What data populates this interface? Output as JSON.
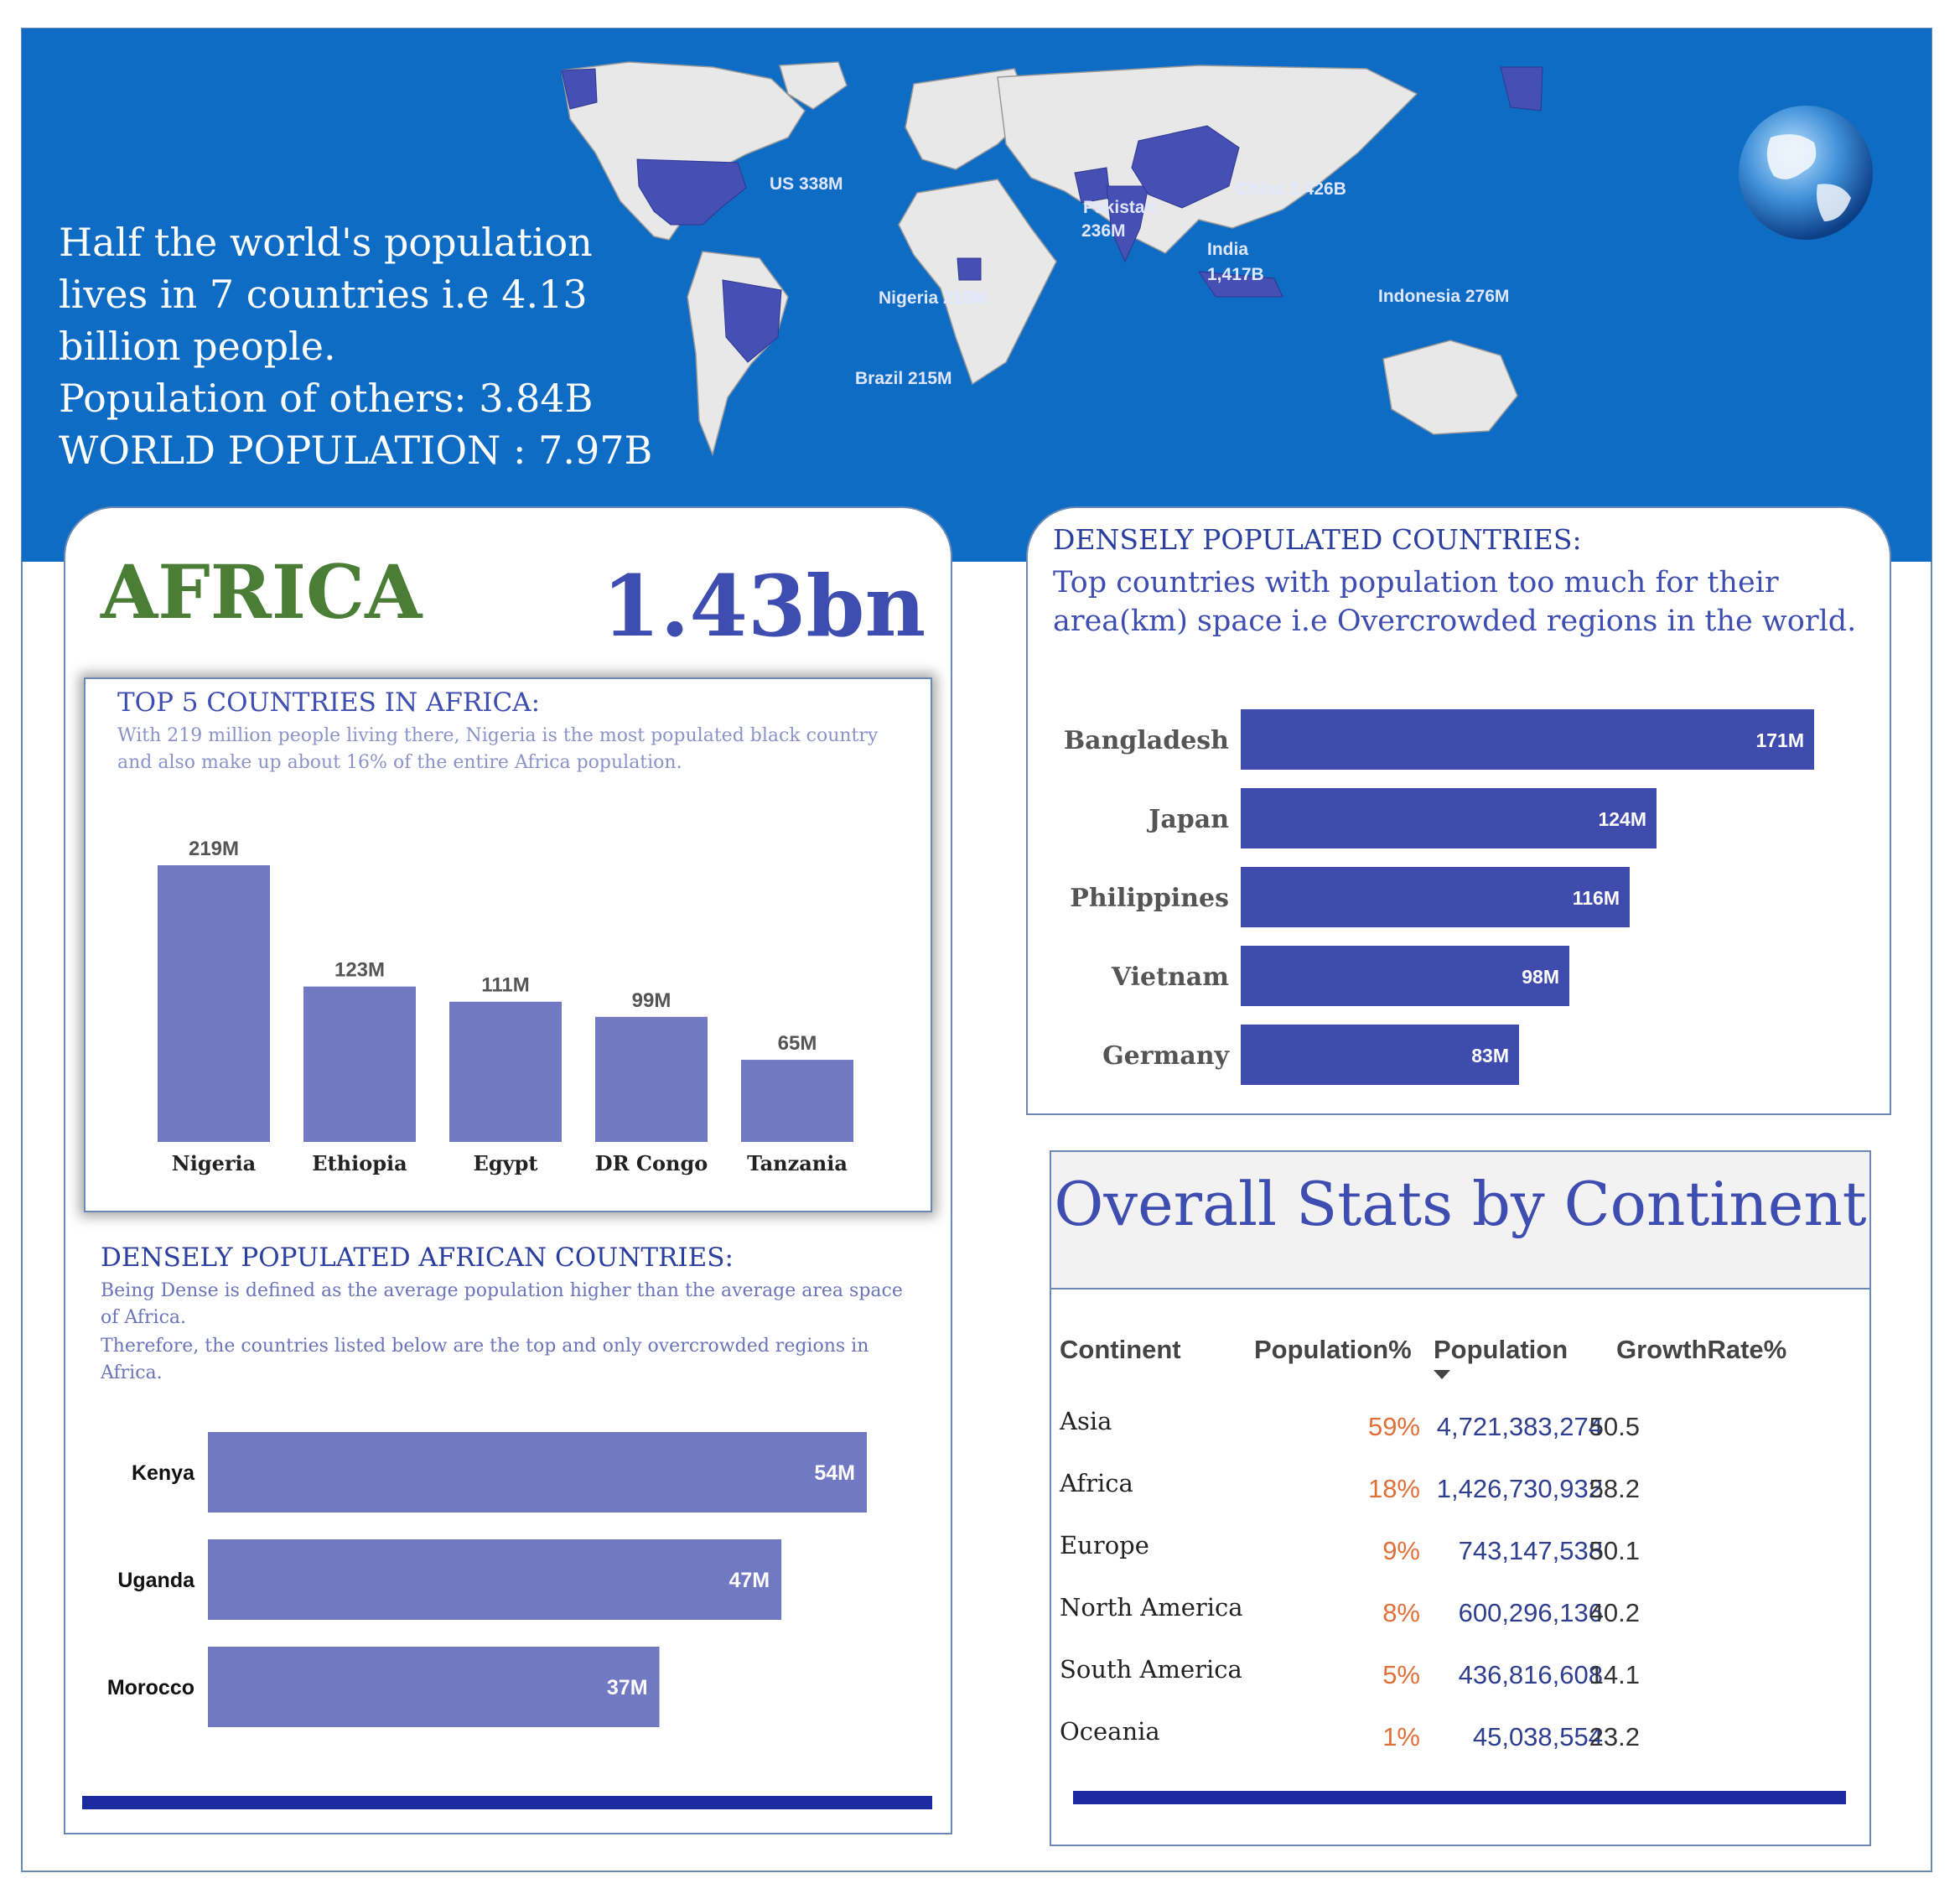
{
  "header": {
    "lines": [
      "Half the world's population",
      "lives in 7 countries i.e 4.13",
      "billion people.",
      "Population of others: 3.84B",
      "WORLD POPULATION : 7.97B"
    ],
    "map_labels": {
      "us": "US  338M",
      "china": "China 1.426B",
      "pakistan_1": "Pakistan",
      "pakistan_2": "236M",
      "india_1": "India",
      "india_2": "1,417B",
      "nigeria": "Nigeria 219M",
      "indonesia": "Indonesia 276M",
      "brazil": "Brazil 215M"
    }
  },
  "africa": {
    "title": "AFRICA",
    "population": "1.43bn",
    "top5": {
      "title": "TOP 5 COUNTRIES IN AFRICA:",
      "desc_1": "With 219 million people living there, Nigeria is the most populated black country",
      "desc_2": "and also make up  about 16% of the entire Africa population."
    },
    "dense": {
      "title": "DENSELY POPULATED AFRICAN COUNTRIES:",
      "desc_1": "Being Dense is defined as the average population higher than the average area space",
      "desc_2": "of Africa.",
      "desc_3": "Therefore, the countries listed below are the top and  only overcrowded regions in",
      "desc_4": "Africa."
    }
  },
  "dense_world": {
    "title": "DENSELY POPULATED COUNTRIES:",
    "desc_1": "Top countries with population too much for their",
    "desc_2": "area(km) space i.e Overcrowded regions in the world."
  },
  "stats": {
    "title": "Overall Stats by Continent",
    "headers": [
      "Continent",
      "Population%",
      "Population",
      "GrowthRate%"
    ],
    "rows": [
      {
        "continent": "Asia",
        "pct": "59%",
        "population": "4,721,383,274",
        "growth": "50.5"
      },
      {
        "continent": "Africa",
        "pct": "18%",
        "population": "1,426,730,932",
        "growth": "58.2"
      },
      {
        "continent": "Europe",
        "pct": "9%",
        "population": "743,147,538",
        "growth": "50.1"
      },
      {
        "continent": "North America",
        "pct": "8%",
        "population": "600,296,136",
        "growth": "40.2"
      },
      {
        "continent": "South America",
        "pct": "5%",
        "population": "436,816,608",
        "growth": "14.1"
      },
      {
        "continent": "Oceania",
        "pct": "1%",
        "population": "45,038,554",
        "growth": "23.2"
      }
    ]
  },
  "colors": {
    "banner": "#0f6cc4",
    "africa_bar": "#7079c2",
    "world_bar": "#3f4cad",
    "title_green": "#4a7d36",
    "accent_blue": "#3d4db0",
    "pct_orange": "#e0703a"
  },
  "chart_data": [
    {
      "type": "bar",
      "categories": [
        "Nigeria",
        "Ethiopia",
        "Egypt",
        "DR Congo",
        "Tanzania"
      ],
      "values": [
        219,
        123,
        111,
        99,
        65
      ],
      "labels": [
        "219M",
        "123M",
        "111M",
        "99M",
        "65M"
      ],
      "ylim": [
        0,
        219
      ]
    },
    {
      "type": "bar",
      "orientation": "horizontal",
      "categories": [
        "Kenya",
        "Uganda",
        "Morocco"
      ],
      "values": [
        54,
        47,
        37
      ],
      "labels": [
        "54M",
        "47M",
        "37M"
      ],
      "xlim": [
        0,
        54
      ]
    },
    {
      "type": "bar",
      "orientation": "horizontal",
      "categories": [
        "Bangladesh",
        "Japan",
        "Philippines",
        "Vietnam",
        "Germany"
      ],
      "values": [
        171,
        124,
        116,
        98,
        83
      ],
      "labels": [
        "171M",
        "124M",
        "116M",
        "98M",
        "83M"
      ],
      "xlim": [
        0,
        171
      ]
    }
  ]
}
